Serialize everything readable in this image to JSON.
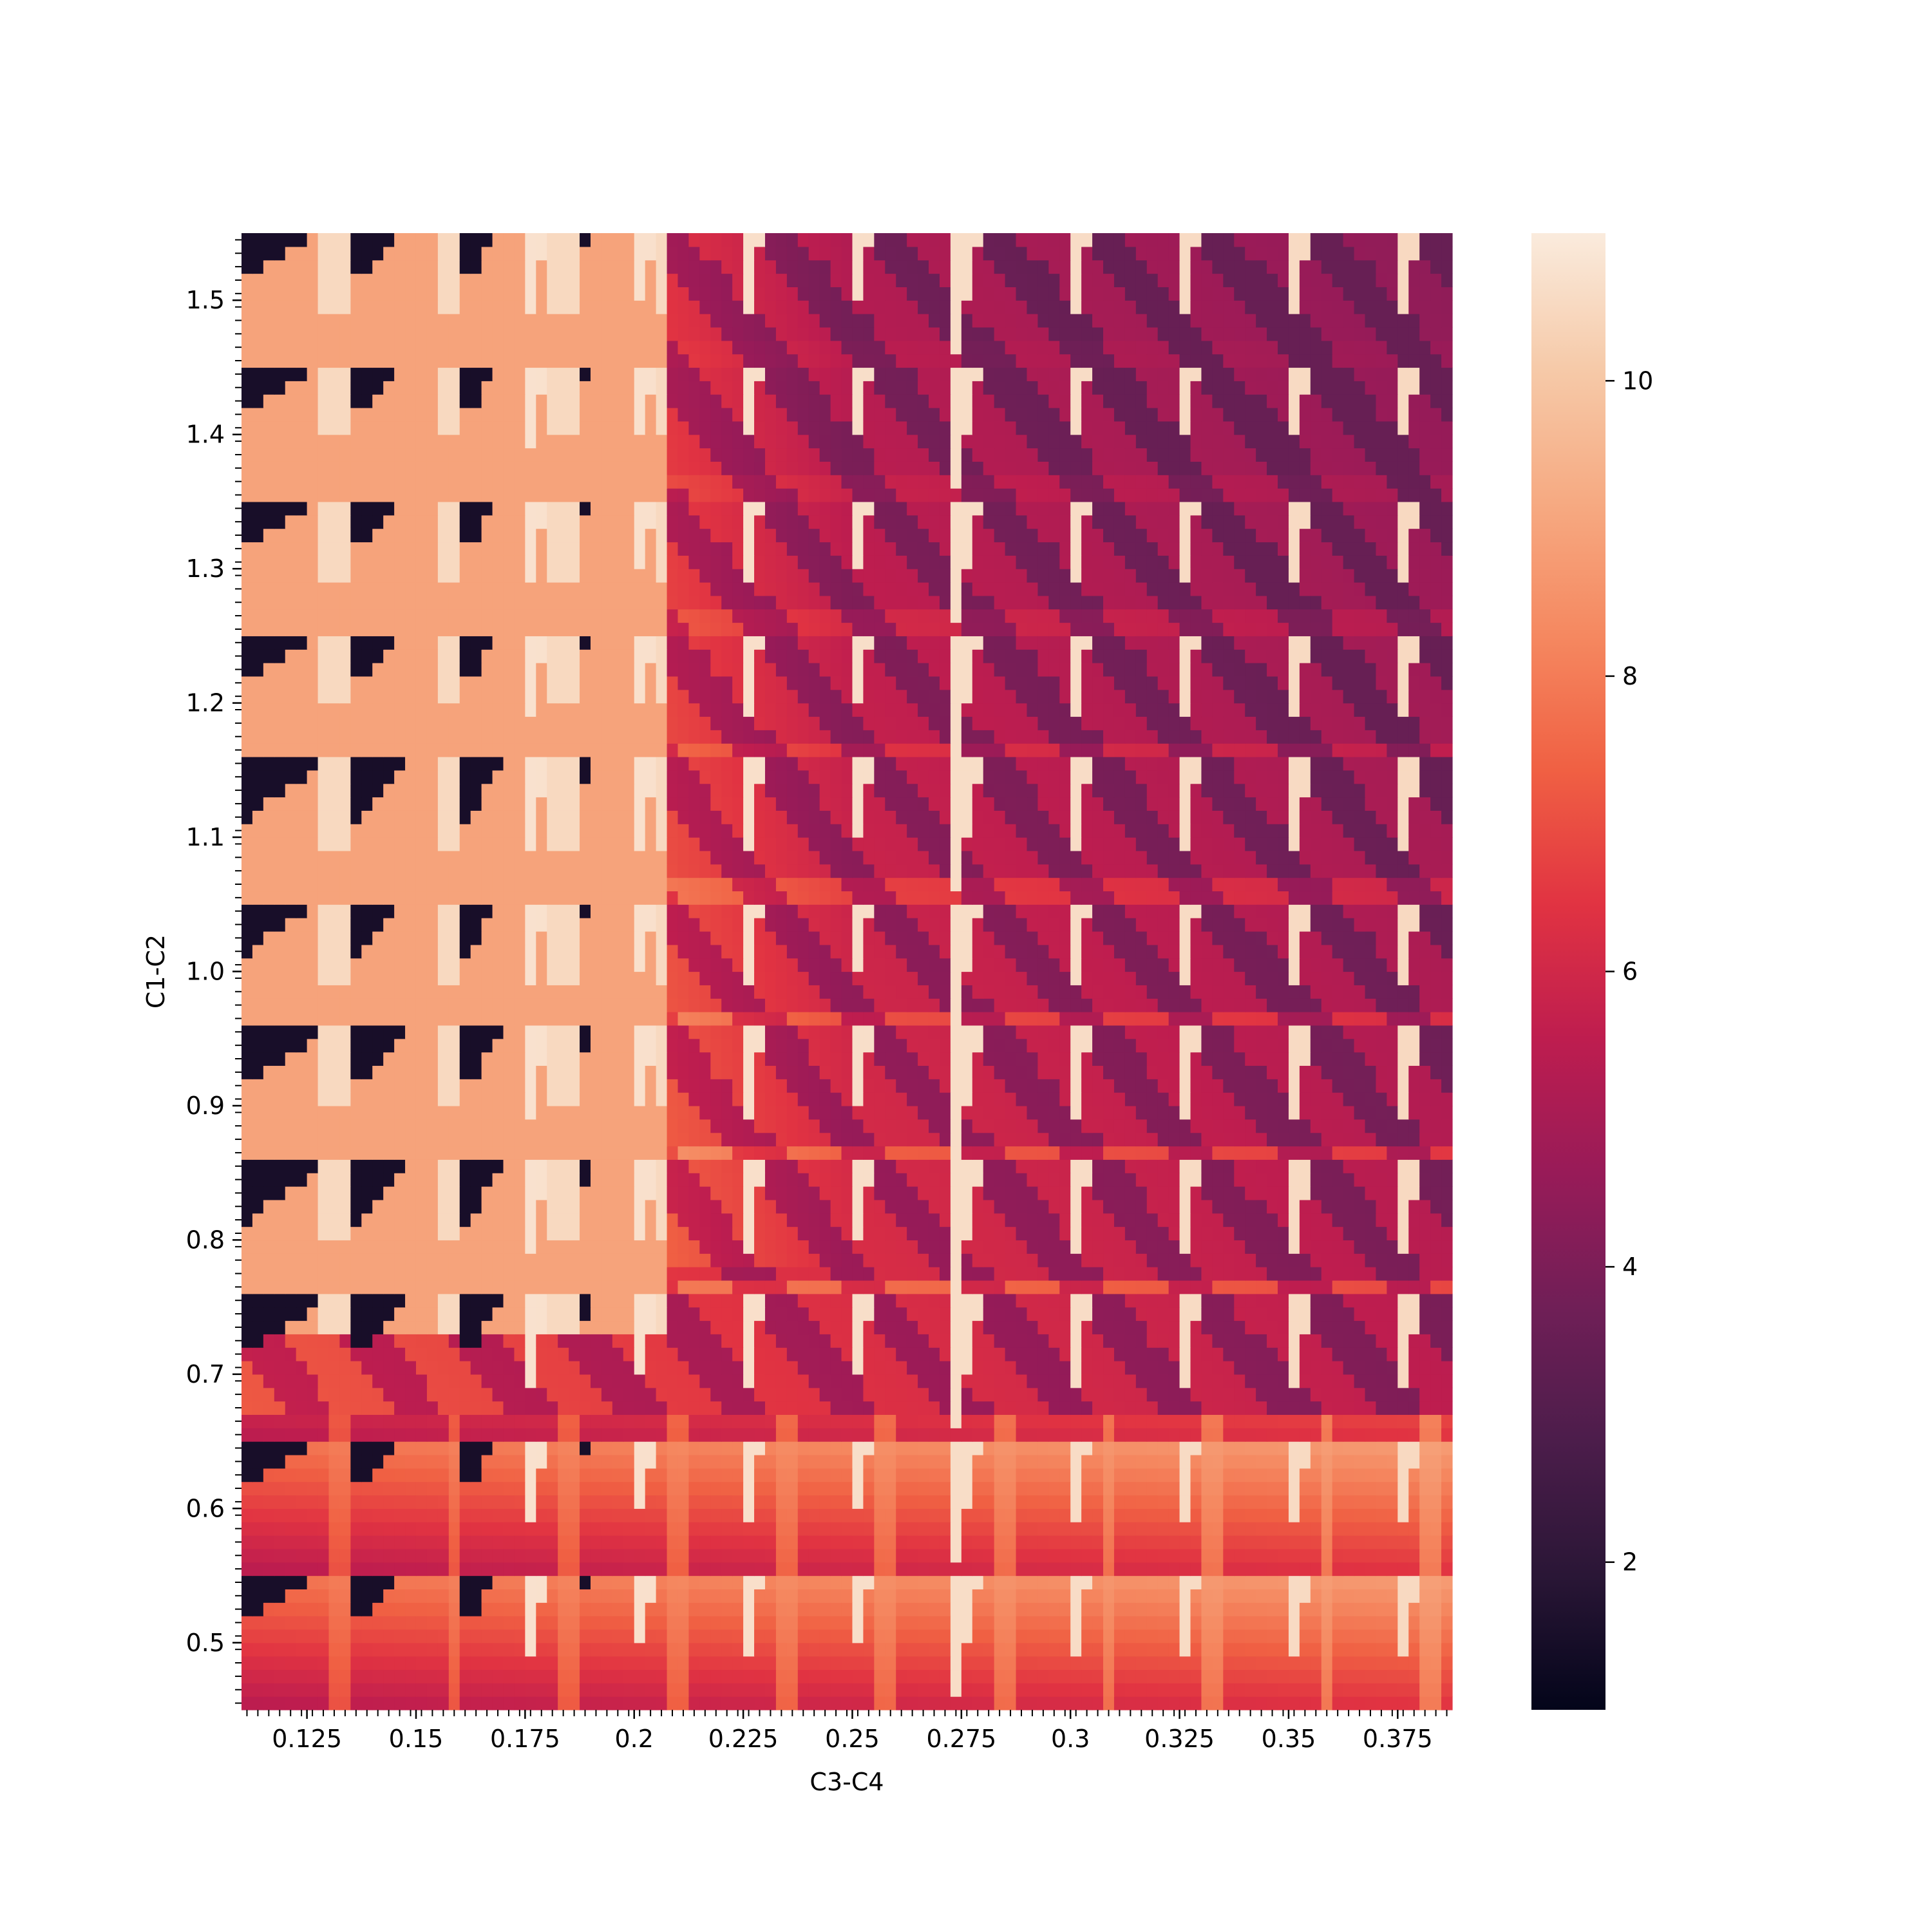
{
  "chart_data": {
    "type": "heatmap",
    "title": "",
    "xlabel": "C3-C4",
    "ylabel": "C1-C2",
    "x_range": [
      0.11,
      0.3875
    ],
    "y_range": [
      0.45,
      1.55
    ],
    "x_ticks": [
      {
        "value": 0.125,
        "label": "0.125"
      },
      {
        "value": 0.15,
        "label": "0.15"
      },
      {
        "value": 0.175,
        "label": "0.175"
      },
      {
        "value": 0.2,
        "label": "0.2"
      },
      {
        "value": 0.225,
        "label": "0.225"
      },
      {
        "value": 0.25,
        "label": "0.25"
      },
      {
        "value": 0.275,
        "label": "0.275"
      },
      {
        "value": 0.3,
        "label": "0.3"
      },
      {
        "value": 0.325,
        "label": "0.325"
      },
      {
        "value": 0.35,
        "label": "0.35"
      },
      {
        "value": 0.375,
        "label": "0.375"
      }
    ],
    "y_ticks": [
      {
        "value": 0.5,
        "label": "0.5"
      },
      {
        "value": 0.6,
        "label": "0.6"
      },
      {
        "value": 0.7,
        "label": "0.7"
      },
      {
        "value": 0.8,
        "label": "0.8"
      },
      {
        "value": 0.9,
        "label": "0.9"
      },
      {
        "value": 1.0,
        "label": "1.0"
      },
      {
        "value": 1.1,
        "label": "1.1"
      },
      {
        "value": 1.2,
        "label": "1.2"
      },
      {
        "value": 1.3,
        "label": "1.3"
      },
      {
        "value": 1.4,
        "label": "1.4"
      },
      {
        "value": 1.5,
        "label": "1.5"
      }
    ],
    "colorbar": {
      "range": [
        1,
        11
      ],
      "ticks": [
        {
          "value": 2,
          "label": "2"
        },
        {
          "value": 4,
          "label": "4"
        },
        {
          "value": 6,
          "label": "6"
        },
        {
          "value": 8,
          "label": "8"
        },
        {
          "value": 10,
          "label": "10"
        }
      ],
      "colormap": "rocket",
      "stops": [
        "#03051a",
        "#2a1636",
        "#4c1d4b",
        "#701f57",
        "#981b58",
        "#be1d4f",
        "#e13342",
        "#f06043",
        "#f58860",
        "#f6aa82",
        "#f6caa9",
        "#faebdd"
      ]
    },
    "x_values": [
      0.1125,
      0.115,
      0.1175,
      0.12,
      0.1225,
      0.125,
      0.1275,
      0.13,
      0.1325,
      0.135,
      0.1375,
      0.14,
      0.1425,
      0.145,
      0.1475,
      0.15,
      0.1525,
      0.155,
      0.1575,
      0.16,
      0.1625,
      0.165,
      0.1675,
      0.17,
      0.1725,
      0.175,
      0.1775,
      0.18,
      0.1825,
      0.185,
      0.1875,
      0.19,
      0.1925,
      0.195,
      0.1975,
      0.2,
      0.2025,
      0.205,
      0.2075,
      0.21,
      0.2125,
      0.215,
      0.2175,
      0.22,
      0.2225,
      0.225,
      0.2275,
      0.23,
      0.2325,
      0.235,
      0.2375,
      0.24,
      0.2425,
      0.245,
      0.2475,
      0.25,
      0.2525,
      0.255,
      0.2575,
      0.26,
      0.2625,
      0.265,
      0.2675,
      0.27,
      0.2725,
      0.275,
      0.2775,
      0.28,
      0.2825,
      0.285,
      0.2875,
      0.29,
      0.2925,
      0.295,
      0.2975,
      0.3,
      0.3025,
      0.305,
      0.3075,
      0.31,
      0.3125,
      0.315,
      0.3175,
      0.32,
      0.3225,
      0.325,
      0.3275,
      0.33,
      0.3325,
      0.335,
      0.3375,
      0.34,
      0.3425,
      0.345,
      0.3475,
      0.35,
      0.3525,
      0.355,
      0.3575,
      0.36,
      0.3625,
      0.365,
      0.3675,
      0.37,
      0.3725,
      0.375,
      0.3775,
      0.38,
      0.3825,
      0.385,
      0.3875
    ],
    "y_values": [
      0.45,
      0.46,
      0.47,
      0.48,
      0.49,
      0.5,
      0.51,
      0.52,
      0.53,
      0.54,
      0.55,
      0.56,
      0.57,
      0.58,
      0.59,
      0.6,
      0.61,
      0.62,
      0.63,
      0.64,
      0.65,
      0.66,
      0.67,
      0.68,
      0.69,
      0.7,
      0.71,
      0.72,
      0.73,
      0.74,
      0.75,
      0.76,
      0.77,
      0.78,
      0.79,
      0.8,
      0.81,
      0.82,
      0.83,
      0.84,
      0.85,
      0.86,
      0.87,
      0.88,
      0.89,
      0.9,
      0.91,
      0.92,
      0.93,
      0.94,
      0.95,
      0.96,
      0.97,
      0.98,
      0.99,
      1.0,
      1.01,
      1.02,
      1.03,
      1.04,
      1.05,
      1.06,
      1.07,
      1.08,
      1.09,
      1.1,
      1.11,
      1.12,
      1.13,
      1.14,
      1.15,
      1.16,
      1.17,
      1.18,
      1.19,
      1.2,
      1.21,
      1.22,
      1.23,
      1.24,
      1.25,
      1.26,
      1.27,
      1.28,
      1.29,
      1.3,
      1.31,
      1.32,
      1.33,
      1.34,
      1.35,
      1.36,
      1.37,
      1.38,
      1.39,
      1.4,
      1.41,
      1.42,
      1.43,
      1.44,
      1.45,
      1.46,
      1.47,
      1.48,
      1.49,
      1.5,
      1.51,
      1.52,
      1.53,
      1.54
    ],
    "values_note": "",
    "z_model": {
      "period_x": 0.025,
      "period_y": 0.1,
      "dark_corner_value": 1.5,
      "base_value_left": 9.0,
      "band_light_value": 10.8,
      "base_value_right_top": 6.0,
      "base_value_right_bottom": 8.0,
      "mid_value": 4.0
    }
  }
}
